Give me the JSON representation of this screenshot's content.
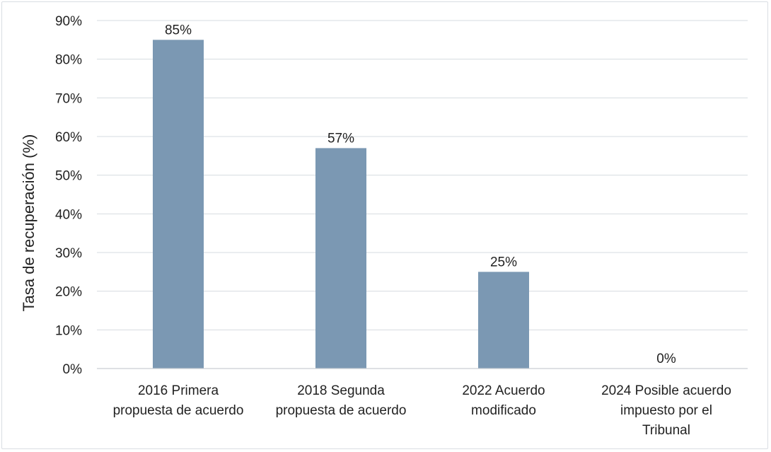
{
  "chart_data": {
    "type": "bar",
    "title": "",
    "xlabel": "",
    "ylabel": "Tasa de recuperación (%)",
    "ylim": [
      0,
      90
    ],
    "yticks": [
      "0%",
      "10%",
      "20%",
      "30%",
      "40%",
      "50%",
      "60%",
      "70%",
      "80%",
      "90%"
    ],
    "grid": true,
    "legend": "none",
    "categories": [
      [
        "2016 Primera",
        "propuesta de acuerdo"
      ],
      [
        "2018 Segunda",
        "propuesta de acuerdo"
      ],
      [
        "2022 Acuerdo",
        "modificado"
      ],
      [
        "2024 Posible acuerdo",
        "impuesto por el",
        "Tribunal"
      ]
    ],
    "values": [
      85,
      57,
      25,
      0
    ],
    "data_labels": [
      "85%",
      "57%",
      "25%",
      "0%"
    ],
    "bar_color": "#7b98b3",
    "grid_color": "#d6dbe0"
  }
}
